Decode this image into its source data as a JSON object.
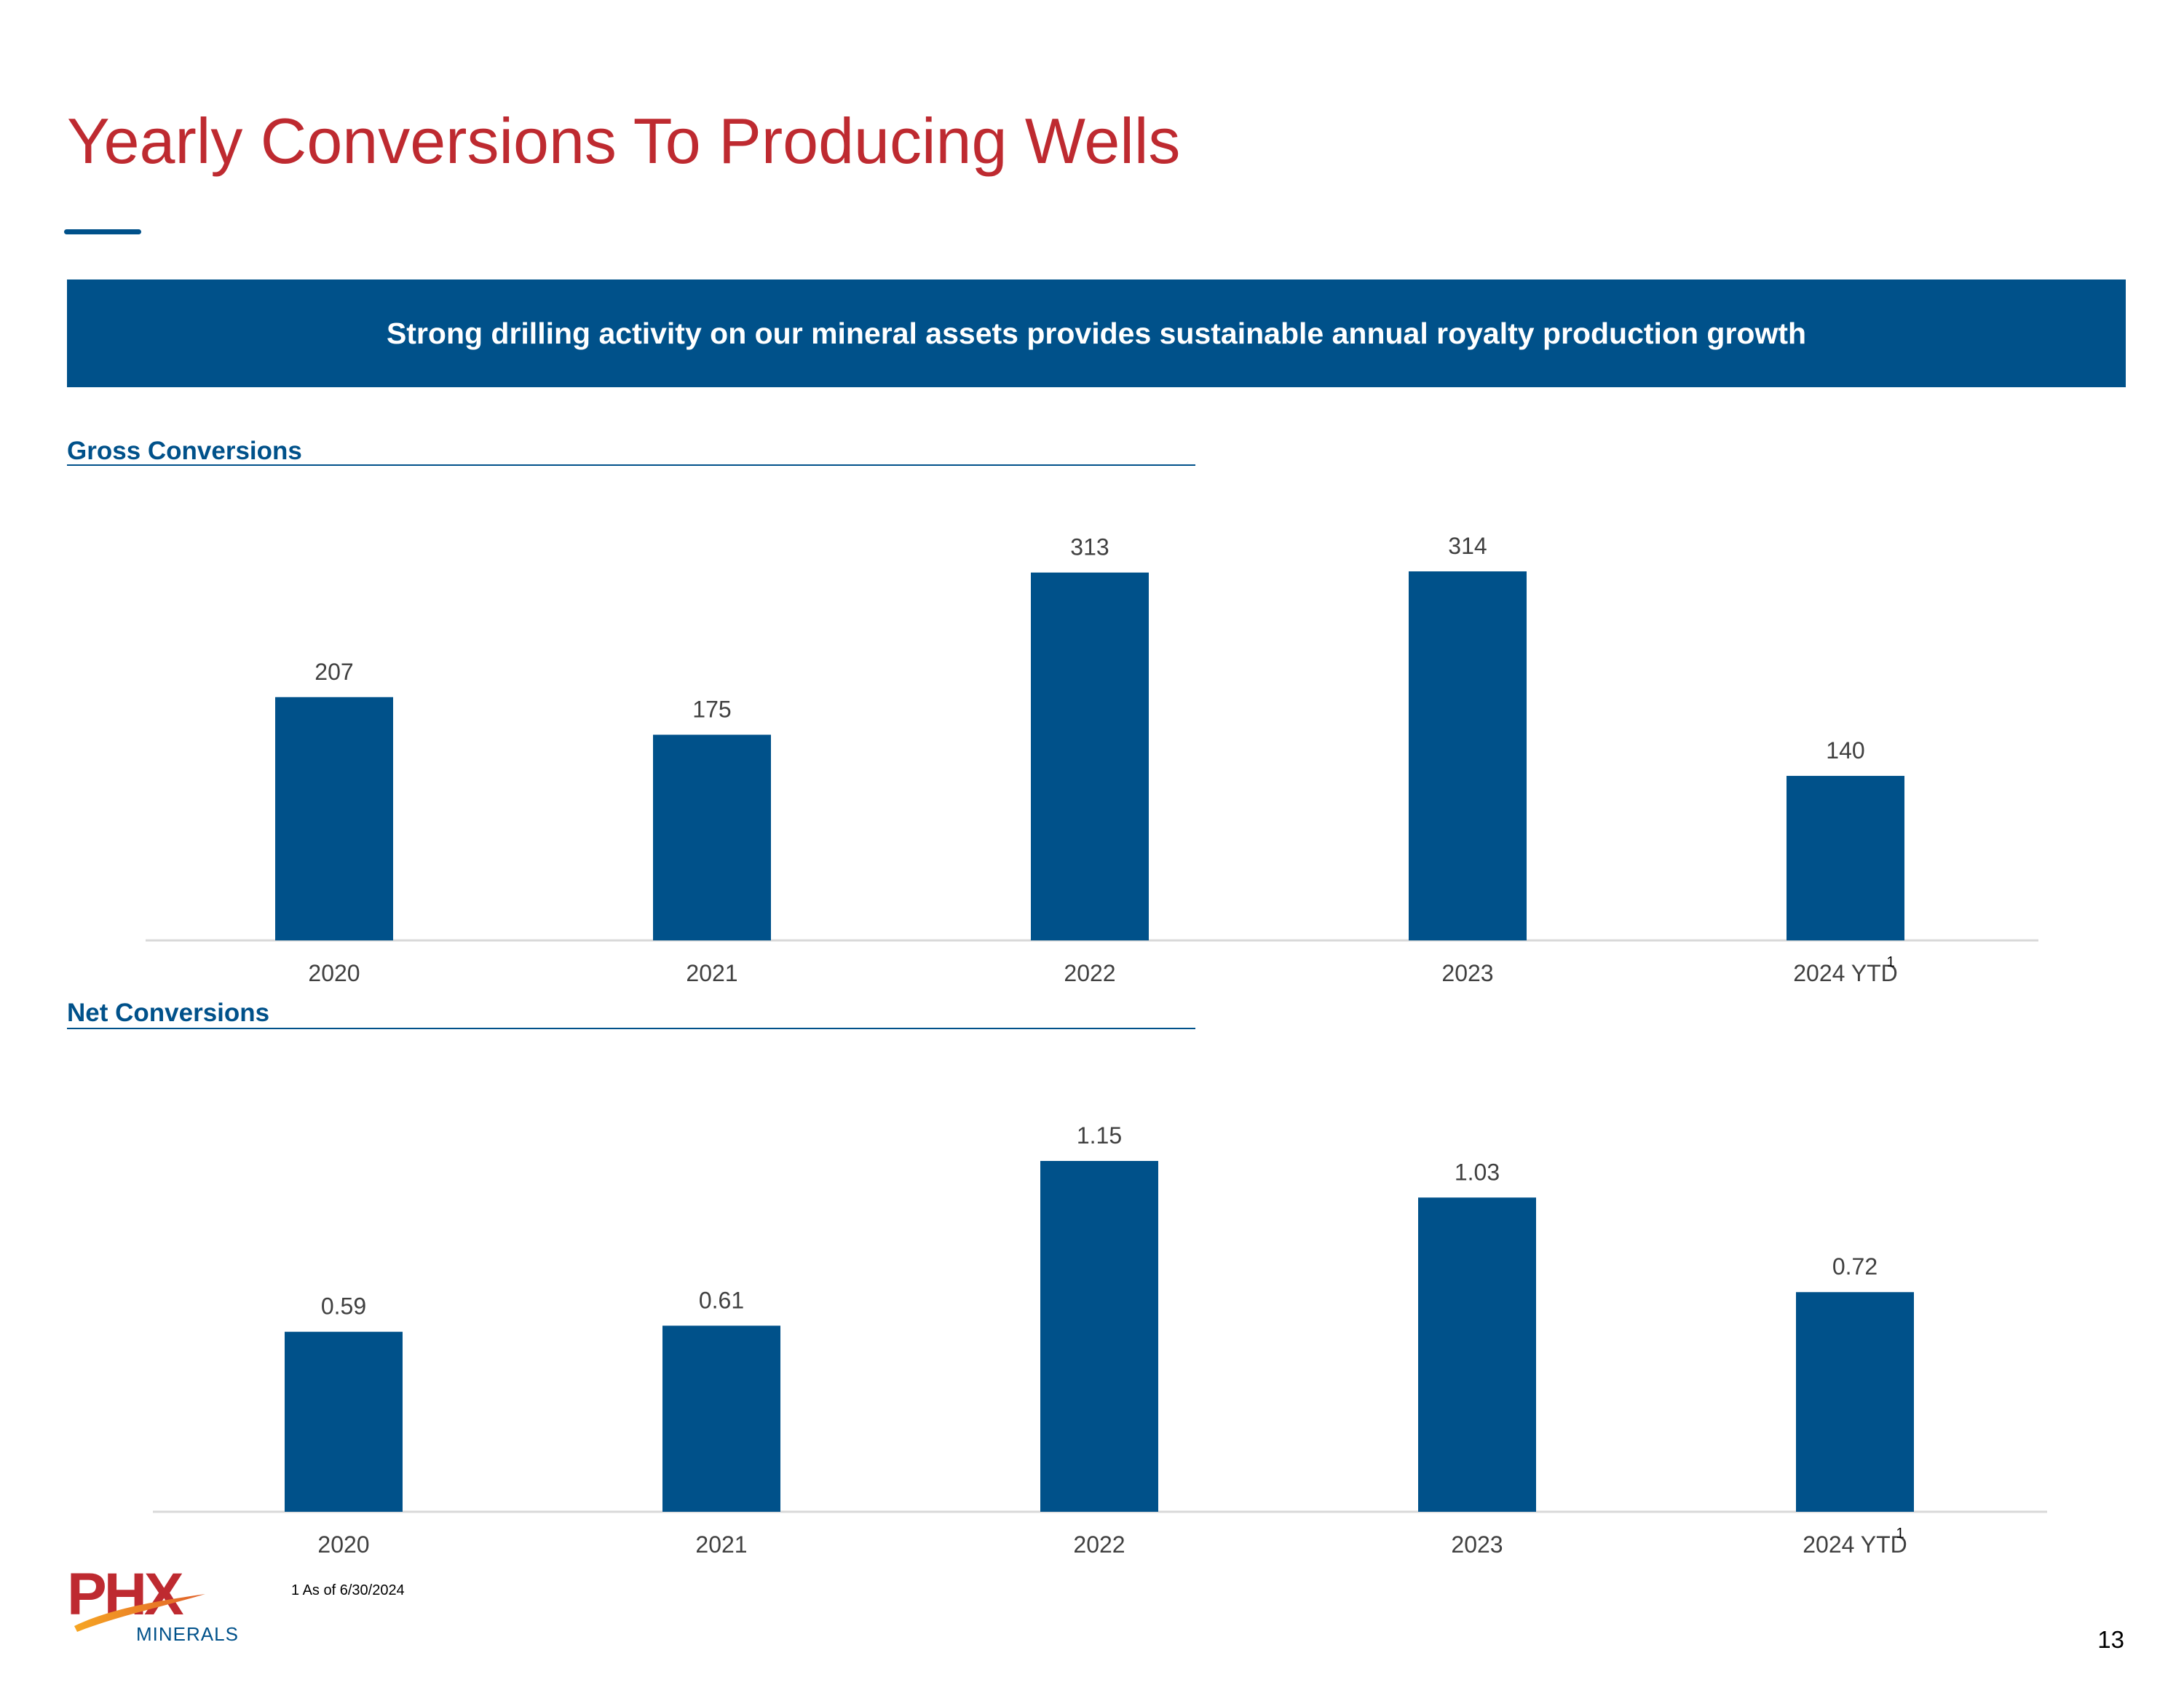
{
  "header": {
    "title": "Yearly Conversions To Producing Wells",
    "banner": "Strong drilling activity on our mineral assets provides sustainable annual royalty production growth"
  },
  "colors": {
    "title": "#BE2A30",
    "brand_blue": "#00518A",
    "axis": "#D9D9D9",
    "label": "#404040"
  },
  "chart_data": [
    {
      "type": "bar",
      "title": "Gross Conversions",
      "categories": [
        "2020",
        "2021",
        "2022",
        "2023",
        "2024 YTD"
      ],
      "category_footnotes": [
        "",
        "",
        "",
        "",
        "1"
      ],
      "values": [
        207,
        175,
        313,
        314,
        140
      ],
      "value_labels": [
        "207",
        "175",
        "313",
        "314",
        "140"
      ],
      "ylim": [
        0,
        314
      ],
      "grid": false,
      "legend": "none"
    },
    {
      "type": "bar",
      "title": "Net Conversions",
      "categories": [
        "2020",
        "2021",
        "2022",
        "2023",
        "2024 YTD"
      ],
      "category_footnotes": [
        "",
        "",
        "",
        "",
        "1"
      ],
      "values": [
        0.59,
        0.61,
        1.15,
        1.03,
        0.72
      ],
      "value_labels": [
        "0.59",
        "0.61",
        "1.15",
        "1.03",
        "0.72"
      ],
      "ylim": [
        0,
        1.15
      ],
      "grid": false,
      "legend": "none"
    }
  ],
  "footer": {
    "footnote": "1 As of 6/30/2024",
    "page_number": "13",
    "logo_text": "PHX",
    "logo_subtext": "MINERALS"
  }
}
